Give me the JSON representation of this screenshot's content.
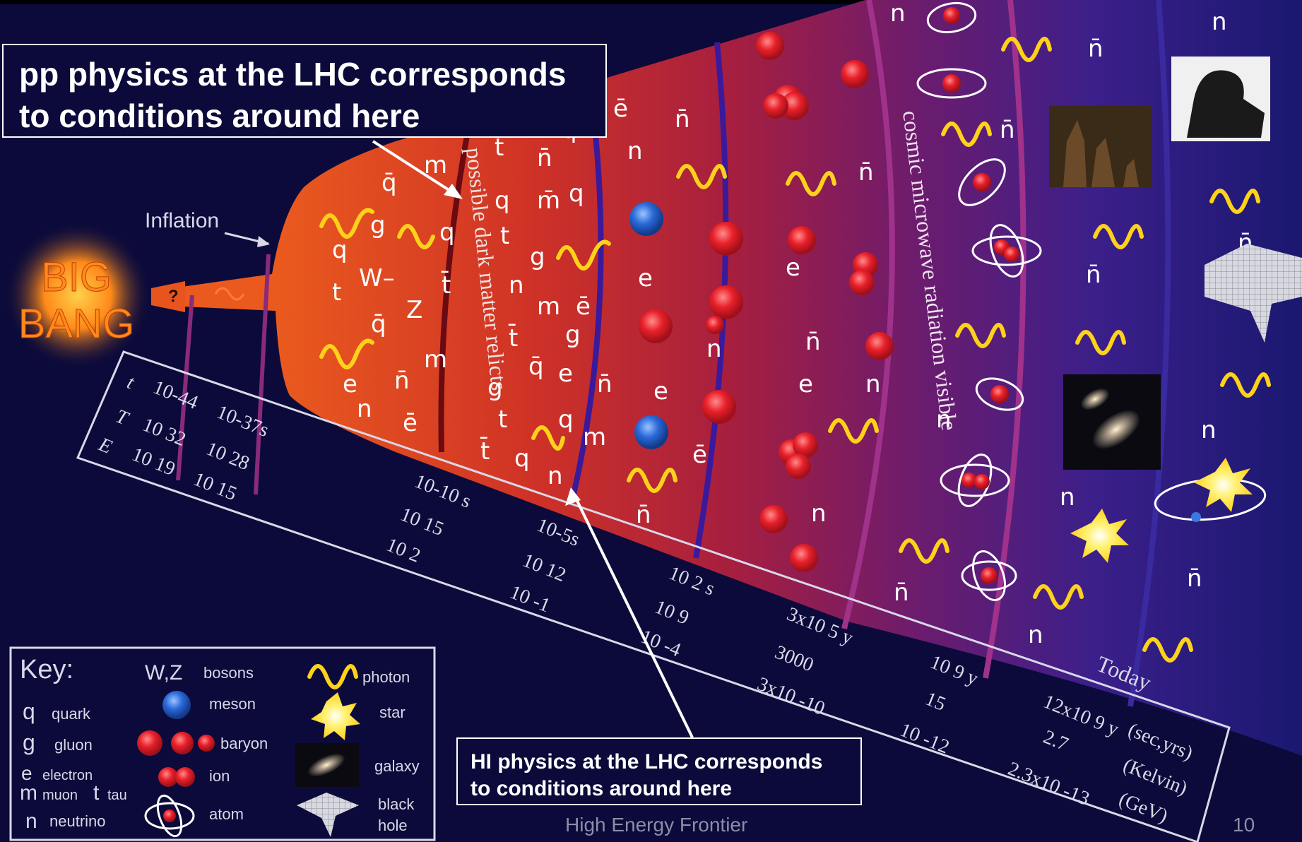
{
  "callouts": {
    "pp_line1": "pp physics at the LHC corresponds",
    "pp_line2": "to conditions around here",
    "hi_line1": "HI physics at the LHC corresponds",
    "hi_line2": "to conditions around here"
  },
  "big_bang": {
    "line1": "BIG",
    "line2": "BANG",
    "question": "?"
  },
  "inflation_label": "Inflation",
  "band_labels": {
    "dark_matter": "possible dark matter relicts",
    "cmb": "cosmic microwave radiation visible"
  },
  "scale": {
    "row_labels": [
      "t",
      "T",
      "E"
    ],
    "t_values": [
      "10-44",
      "10-37s",
      "10-10 s",
      "10-5s",
      "10 2 s",
      "3x10 5 y",
      "10 9 y",
      "12x10 9 y"
    ],
    "T_values": [
      "10 32",
      "10 28",
      "10 15",
      "10 12",
      "10 9",
      "3000",
      "15",
      "2.7"
    ],
    "E_values": [
      "10 19",
      "10 15",
      "10 2",
      "10 -1",
      "10 -4",
      "3x10 -10",
      "10 -12",
      "2.3x10 -13"
    ],
    "today": "Today",
    "units": [
      "(sec,yrs)",
      "(Kelvin)",
      "(GeV)"
    ]
  },
  "particles": {
    "q": "q",
    "qbar": "q̄",
    "g": "g",
    "W": "W",
    "Wm": "W–",
    "Z": "Z",
    "t": "t",
    "tbar": "t̄",
    "m": "m",
    "mbar": "m̄",
    "e": "e",
    "ebar": "ē",
    "n": "n",
    "nbar": "n̄",
    "qq": "qq̄",
    "qqq": "qq q"
  },
  "key": {
    "title": "Key:",
    "quark_sym": "q",
    "quark": "quark",
    "gluon_sym": "g",
    "gluon": "gluon",
    "electron_sym": "e",
    "electron": "electron",
    "muon_sym": "m",
    "muon": "muon",
    "tau_sym": "t",
    "tau": "tau",
    "neutrino_sym": "n",
    "neutrino": "neutrino",
    "bosons_sym": "W,Z",
    "bosons": "bosons",
    "meson_sym": "qq̄",
    "meson": "meson",
    "baryon": "baryon",
    "ion": "ion",
    "atom": "atom",
    "photon": "photon",
    "star": "star",
    "galaxy": "galaxy",
    "black_hole_1": "black",
    "black_hole_2": "hole"
  },
  "footer": "High Energy Frontier",
  "page_number": "10",
  "colors": {
    "background": "#0b0a3a",
    "cone_hot": "#e8541e",
    "cone_mid": "#b11e3a",
    "cone_cool": "#4a1d8a",
    "photon": "#ffd21a",
    "particle_text": "#ffffff",
    "band_line": "#a0328c",
    "baryon": "#e8202a",
    "meson": "#2a6ad8"
  }
}
